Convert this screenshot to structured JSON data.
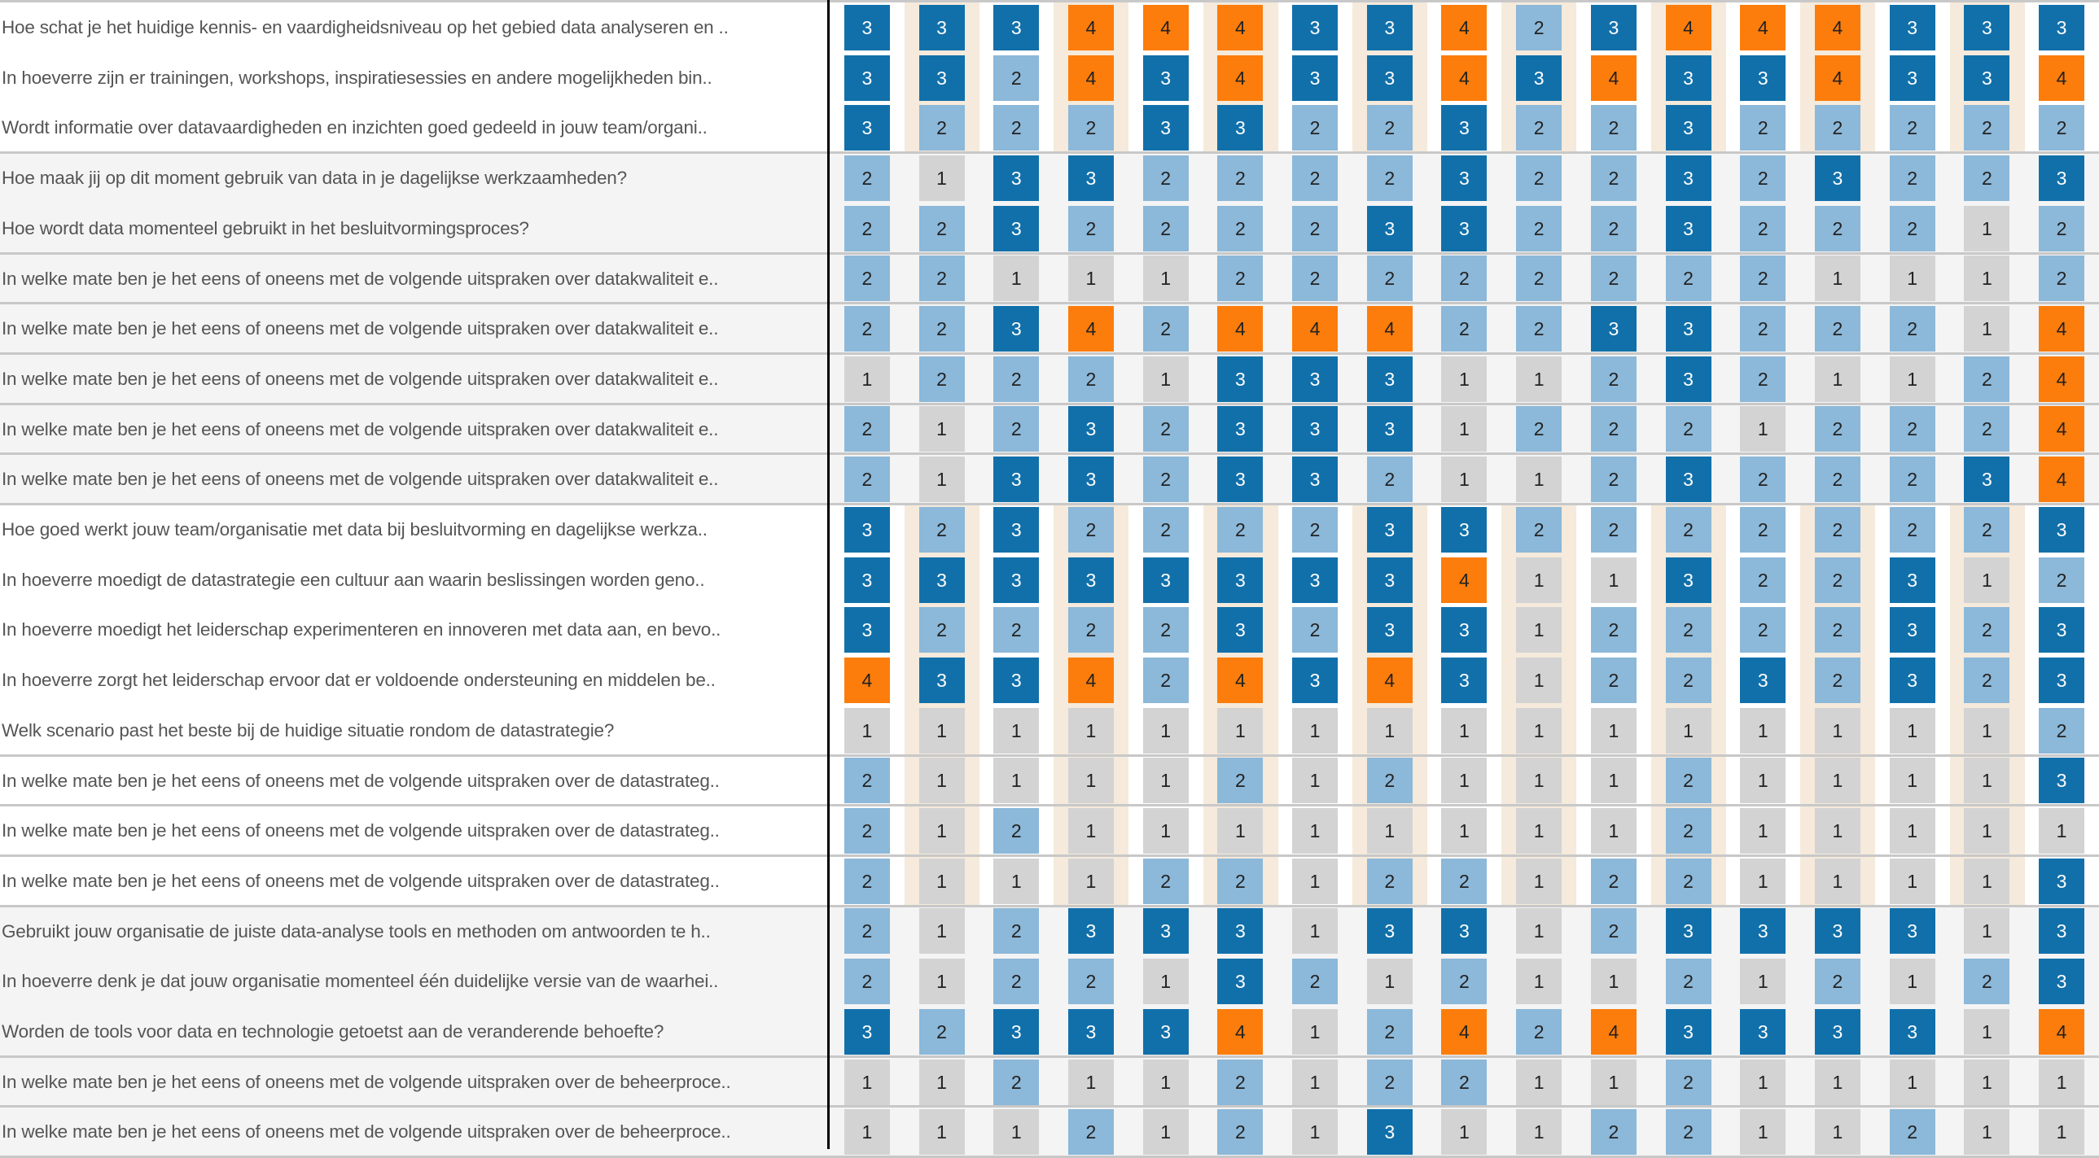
{
  "chart_data": {
    "type": "heatmap",
    "color_scale": {
      "1": "#d3d3d3",
      "2": "#8cb8d9",
      "3": "#1170aa",
      "4": "#fc7d0b"
    },
    "text_color": {
      "1": "#222222",
      "2": "#222222",
      "3": "#ffffff",
      "4": "#222222"
    },
    "column_count": 17,
    "groups": [
      {
        "rows": 3,
        "shaded": false,
        "row_dividers": false
      },
      {
        "rows": 2,
        "shaded": true,
        "row_dividers": false
      },
      {
        "rows": 5,
        "shaded": true,
        "row_dividers": true
      },
      {
        "rows": 5,
        "shaded": false,
        "row_dividers": false
      },
      {
        "rows": 3,
        "shaded": false,
        "row_dividers": true
      },
      {
        "rows": 3,
        "shaded": true,
        "row_dividers": false
      },
      {
        "rows": 2,
        "shaded": true,
        "row_dividers": true
      }
    ],
    "rows": [
      {
        "label": "Hoe schat je het huidige kennis- en vaardigheidsniveau op het gebied data analyseren en ..",
        "values": [
          3,
          3,
          3,
          4,
          4,
          4,
          3,
          3,
          4,
          2,
          3,
          4,
          4,
          4,
          3,
          3,
          3
        ]
      },
      {
        "label": "In hoeverre zijn er trainingen, workshops, inspiratiesessies en andere mogelijkheden bin..",
        "values": [
          3,
          3,
          2,
          4,
          3,
          4,
          3,
          3,
          4,
          3,
          4,
          3,
          3,
          4,
          3,
          3,
          4
        ]
      },
      {
        "label": "Wordt informatie over datavaardigheden en inzichten goed gedeeld in jouw team/organi..",
        "values": [
          3,
          2,
          2,
          2,
          3,
          3,
          2,
          2,
          3,
          2,
          2,
          3,
          2,
          2,
          2,
          2,
          2
        ]
      },
      {
        "label": "Hoe maak jij op dit moment gebruik van data in je dagelijkse werkzaamheden?",
        "values": [
          2,
          1,
          3,
          3,
          2,
          2,
          2,
          2,
          3,
          2,
          2,
          3,
          2,
          3,
          2,
          2,
          3
        ]
      },
      {
        "label": "Hoe wordt data momenteel gebruikt in het besluitvormingsproces?",
        "values": [
          2,
          2,
          3,
          2,
          2,
          2,
          2,
          3,
          3,
          2,
          2,
          3,
          2,
          2,
          2,
          1,
          2
        ]
      },
      {
        "label": "In welke mate ben je het eens of oneens met de volgende uitspraken over datakwaliteit e..",
        "values": [
          2,
          2,
          1,
          1,
          1,
          2,
          2,
          2,
          2,
          2,
          2,
          2,
          2,
          1,
          1,
          1,
          2
        ]
      },
      {
        "label": "In welke mate ben je het eens of oneens met de volgende uitspraken over datakwaliteit e..",
        "values": [
          2,
          2,
          3,
          4,
          2,
          4,
          4,
          4,
          2,
          2,
          3,
          3,
          2,
          2,
          2,
          1,
          4
        ]
      },
      {
        "label": "In welke mate ben je het eens of oneens met de volgende uitspraken over datakwaliteit e..",
        "values": [
          1,
          2,
          2,
          2,
          1,
          3,
          3,
          3,
          1,
          1,
          2,
          3,
          2,
          1,
          1,
          2,
          4
        ]
      },
      {
        "label": "In welke mate ben je het eens of oneens met de volgende uitspraken over datakwaliteit e..",
        "values": [
          2,
          1,
          2,
          3,
          2,
          3,
          3,
          3,
          1,
          2,
          2,
          2,
          1,
          2,
          2,
          2,
          4
        ]
      },
      {
        "label": "In welke mate ben je het eens of oneens met de volgende uitspraken over datakwaliteit e..",
        "values": [
          2,
          1,
          3,
          3,
          2,
          3,
          3,
          2,
          1,
          1,
          2,
          3,
          2,
          2,
          2,
          3,
          4
        ]
      },
      {
        "label": "Hoe goed werkt jouw team/organisatie met data bij besluitvorming en dagelijkse werkza..",
        "values": [
          3,
          2,
          3,
          2,
          2,
          2,
          2,
          3,
          3,
          2,
          2,
          2,
          2,
          2,
          2,
          2,
          3
        ]
      },
      {
        "label": "In hoeverre moedigt de datastrategie een cultuur aan waarin beslissingen worden geno..",
        "values": [
          3,
          3,
          3,
          3,
          3,
          3,
          3,
          3,
          4,
          1,
          1,
          3,
          2,
          2,
          3,
          1,
          2
        ]
      },
      {
        "label": "In hoeverre moedigt het leiderschap experimenteren en innoveren met data aan, en bevo..",
        "values": [
          3,
          2,
          2,
          2,
          2,
          3,
          2,
          3,
          3,
          1,
          2,
          2,
          2,
          2,
          3,
          2,
          3
        ]
      },
      {
        "label": "In hoeverre zorgt het leiderschap ervoor dat er voldoende ondersteuning en middelen be..",
        "values": [
          4,
          3,
          3,
          4,
          2,
          4,
          3,
          4,
          3,
          1,
          2,
          2,
          3,
          2,
          3,
          2,
          3
        ]
      },
      {
        "label": "Welk scenario past het beste bij de huidige situatie rondom de datastrategie?",
        "values": [
          1,
          1,
          1,
          1,
          1,
          1,
          1,
          1,
          1,
          1,
          1,
          1,
          1,
          1,
          1,
          1,
          2
        ]
      },
      {
        "label": "In welke mate ben je het eens of oneens met de volgende uitspraken over de datastrateg..",
        "values": [
          2,
          1,
          1,
          1,
          1,
          2,
          1,
          2,
          1,
          1,
          1,
          2,
          1,
          1,
          1,
          1,
          3
        ]
      },
      {
        "label": "In welke mate ben je het eens of oneens met de volgende uitspraken over de datastrateg..",
        "values": [
          2,
          1,
          2,
          1,
          1,
          1,
          1,
          1,
          1,
          1,
          1,
          2,
          1,
          1,
          1,
          1,
          1
        ]
      },
      {
        "label": "In welke mate ben je het eens of oneens met de volgende uitspraken over de datastrateg..",
        "values": [
          2,
          1,
          1,
          1,
          2,
          2,
          1,
          2,
          2,
          1,
          2,
          2,
          1,
          1,
          1,
          1,
          3
        ]
      },
      {
        "label": "Gebruikt jouw organisatie de juiste data-analyse tools en methoden om antwoorden te h..",
        "values": [
          2,
          1,
          2,
          3,
          3,
          3,
          1,
          3,
          3,
          1,
          2,
          3,
          3,
          3,
          3,
          1,
          3
        ]
      },
      {
        "label": "In hoeverre denk je dat jouw organisatie momenteel één duidelijke versie van de waarhei..",
        "values": [
          2,
          1,
          2,
          2,
          1,
          3,
          2,
          1,
          2,
          1,
          1,
          2,
          1,
          2,
          1,
          2,
          3
        ]
      },
      {
        "label": "Worden de tools voor data en technologie getoetst aan de veranderende behoefte?",
        "values": [
          3,
          2,
          3,
          3,
          3,
          4,
          1,
          2,
          4,
          2,
          4,
          3,
          3,
          3,
          3,
          1,
          4
        ]
      },
      {
        "label": "In welke mate ben je het eens of oneens met de volgende uitspraken over de beheerproce..",
        "values": [
          1,
          1,
          2,
          1,
          1,
          2,
          1,
          2,
          2,
          1,
          1,
          2,
          1,
          1,
          1,
          1,
          1
        ]
      },
      {
        "label": "In welke mate ben je het eens of oneens met de volgende uitspraken over de beheerproce..",
        "values": [
          1,
          1,
          1,
          2,
          1,
          2,
          1,
          3,
          1,
          1,
          2,
          2,
          1,
          1,
          2,
          1,
          1
        ]
      }
    ]
  }
}
